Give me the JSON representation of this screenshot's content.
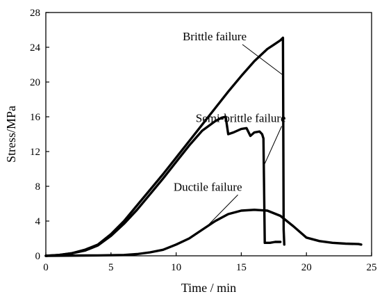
{
  "chart_data": {
    "type": "line",
    "title": "",
    "xlabel": "Time / min",
    "ylabel": "Stress/MPa",
    "xlim": [
      0,
      25
    ],
    "ylim": [
      0,
      28
    ],
    "xticks": [
      0,
      5,
      10,
      15,
      20,
      25
    ],
    "yticks": [
      0,
      4,
      8,
      12,
      16,
      20,
      24,
      28
    ],
    "grid": false,
    "legend": "none",
    "series": [
      {
        "color": "#000000",
        "x": [
          0,
          1,
          2,
          3,
          4,
          5,
          6,
          7,
          8,
          9,
          10,
          11,
          12,
          13,
          14,
          15,
          16,
          17,
          17.5,
          18.0,
          18.2,
          18.25,
          18.3
        ],
        "y": [
          0,
          0.1,
          0.3,
          0.7,
          1.3,
          2.5,
          4.0,
          5.8,
          7.6,
          9.4,
          11.3,
          13.2,
          15.1,
          17.0,
          18.9,
          20.7,
          22.4,
          23.8,
          24.3,
          24.8,
          25.1,
          3.0,
          1.3
        ]
      },
      {
        "color": "#000000",
        "x": [
          0,
          1,
          2,
          3,
          4,
          5,
          6,
          7,
          8,
          9,
          10,
          11,
          12,
          13,
          13.5,
          13.8,
          14.0,
          14.4,
          15.0,
          15.4,
          15.7,
          16.0,
          16.4,
          16.6,
          16.7,
          16.75,
          16.8,
          17.2,
          17.6,
          18.0
        ],
        "y": [
          0,
          0.1,
          0.3,
          0.6,
          1.2,
          2.3,
          3.7,
          5.3,
          7.1,
          8.9,
          10.8,
          12.7,
          14.4,
          15.5,
          15.9,
          16.0,
          14.0,
          14.2,
          14.6,
          14.7,
          13.8,
          14.2,
          14.3,
          14.0,
          13.5,
          8.0,
          1.5,
          1.5,
          1.6,
          1.6
        ]
      },
      {
        "color": "#000000",
        "x": [
          0,
          4,
          6,
          7,
          8,
          9,
          10,
          11,
          12,
          13,
          14,
          15,
          16,
          17,
          18,
          19,
          20,
          21,
          22,
          23,
          24,
          24.2
        ],
        "y": [
          0,
          0.05,
          0.1,
          0.2,
          0.4,
          0.7,
          1.3,
          2.0,
          3.0,
          4.0,
          4.8,
          5.2,
          5.3,
          5.2,
          4.6,
          3.4,
          2.1,
          1.7,
          1.5,
          1.4,
          1.35,
          1.3
        ]
      }
    ],
    "annotations": [
      {
        "text": "Brittle failure",
        "x": 10.5,
        "y": 24.8,
        "target_x": 18.2,
        "target_y": 20.8
      },
      {
        "text": "Semi-brittle failure",
        "x": 11.5,
        "y": 15.4,
        "target_x": 16.8,
        "target_y": 10.6
      },
      {
        "text": "Ductile failure",
        "x": 9.8,
        "y": 7.5,
        "target_x": 12.5,
        "target_y": 3.6
      }
    ]
  }
}
